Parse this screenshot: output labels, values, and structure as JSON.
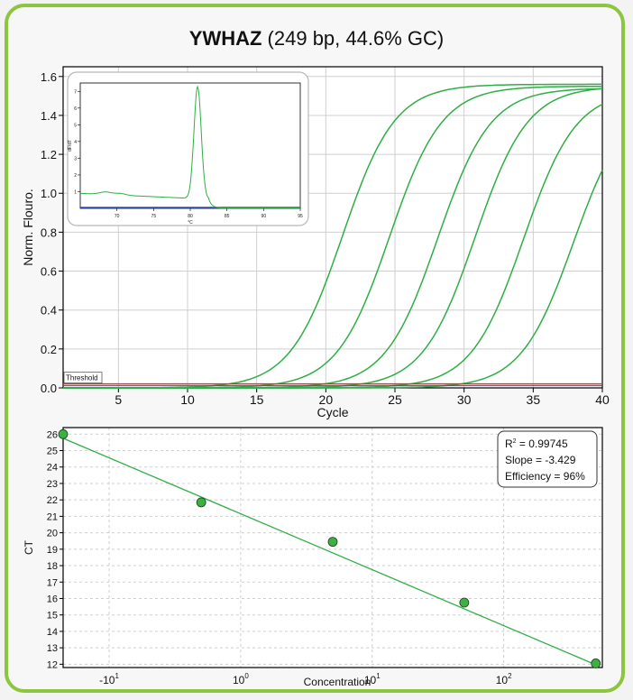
{
  "title": {
    "gene": "YWHAZ",
    "details": "(249 bp, 44.6% GC)"
  },
  "colors": {
    "frame": "#8cc63f",
    "curve": "#2fae45",
    "threshold": "#e03030",
    "point": "#3cb043",
    "baseline": "#3050c0"
  },
  "chart_data": [
    {
      "type": "line",
      "name": "amplification",
      "xlabel": "Cycle",
      "ylabel": "Norm. Flouro.",
      "xlim": [
        1,
        40
      ],
      "ylim": [
        0,
        1.65
      ],
      "xticks": [
        5,
        10,
        15,
        20,
        25,
        30,
        35,
        40
      ],
      "yticks": [
        "0.0",
        "0.2",
        "0.4",
        "0.6",
        "0.8",
        "1.0",
        "1.2",
        "1.4",
        "1.6"
      ],
      "threshold": {
        "label": "Threshold",
        "value": 0.02
      },
      "grid": true,
      "series": [
        {
          "midpoint": 21.2,
          "max": 1.56
        },
        {
          "midpoint": 24.6,
          "max": 1.55
        },
        {
          "midpoint": 28.1,
          "max": 1.54
        },
        {
          "midpoint": 30.8,
          "max": 1.55
        },
        {
          "midpoint": 34.3,
          "max": 1.53
        },
        {
          "midpoint": 37.9,
          "max": 1.49
        }
      ]
    },
    {
      "type": "line",
      "name": "melt-curve-inset",
      "xlabel": "°C",
      "ylabel": "dF/dT",
      "xlim": [
        65,
        95
      ],
      "ylim": [
        0,
        7.5
      ],
      "xticks": [
        "70",
        "75",
        "80",
        "85",
        "90",
        "95"
      ],
      "yticks": [
        "1",
        "2",
        "3",
        "4",
        "5",
        "6",
        "7"
      ],
      "peak": {
        "x": 81.0,
        "y": 6.7
      }
    },
    {
      "type": "scatter",
      "name": "standard-curve",
      "xlabel": "Concentration",
      "ylabel": "CT",
      "xticks": [
        "-10",
        "0",
        "1",
        "2"
      ],
      "xtick_display": [
        {
          "base": "-10",
          "exp": "1"
        },
        {
          "base": "10",
          "exp": "0"
        },
        {
          "base": "10",
          "exp": "1"
        },
        {
          "base": "10",
          "exp": "2"
        }
      ],
      "yticks": [
        12,
        13,
        14,
        15,
        16,
        17,
        18,
        19,
        20,
        21,
        22,
        23,
        24,
        25,
        26
      ],
      "ylim": [
        11.8,
        26.4
      ],
      "points": [
        {
          "x": -1.35,
          "y": 26.0
        },
        {
          "x": -0.3,
          "y": 21.85
        },
        {
          "x": 0.7,
          "y": 19.45
        },
        {
          "x": 1.7,
          "y": 15.75
        },
        {
          "x": 2.7,
          "y": 12.05
        }
      ],
      "fit": {
        "r2_label": "R",
        "r2_exp": "2",
        "r2_value": " = 0.99745",
        "slope": "Slope = -3.429",
        "efficiency": "Efficiency = 96%"
      }
    }
  ]
}
